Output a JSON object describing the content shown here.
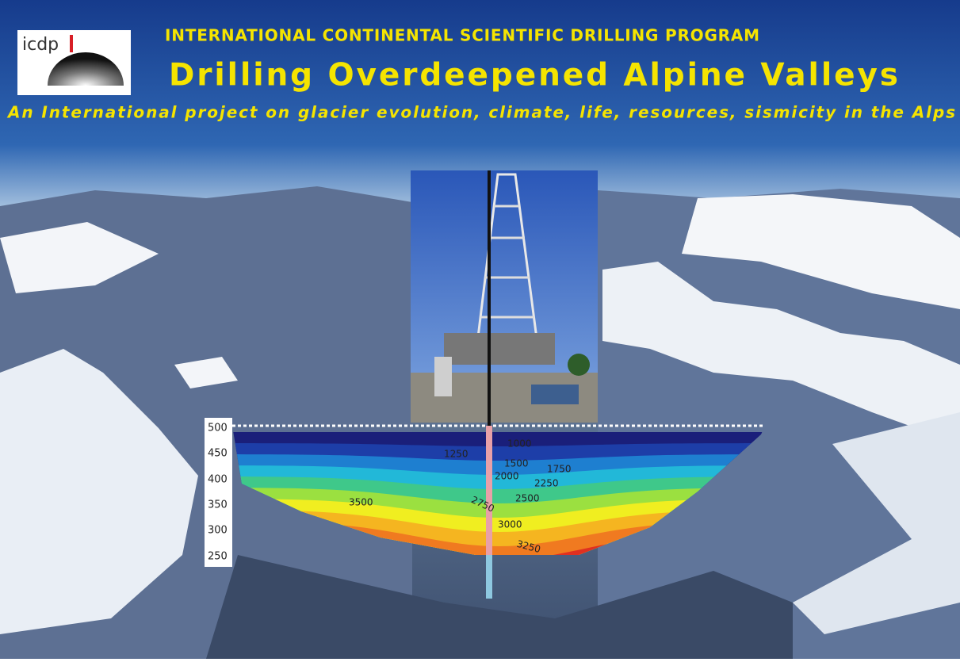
{
  "logo": {
    "text": "icdp"
  },
  "header": {
    "program": "INTERNATIONAL CONTINENTAL SCIENTIFIC DRILLING PROGRAM",
    "title": "Drilling Overdeepened Alpine Valleys",
    "subtitle": "An International project on glacier evolution, climate, life, resources, sismicity in the Alps"
  },
  "section": {
    "axis_labels": [
      "500",
      "450",
      "400",
      "350",
      "300",
      "250"
    ],
    "contour_labels": [
      "1000",
      "1250",
      "1500",
      "1750",
      "2000",
      "2250",
      "2500",
      "2750",
      "3000",
      "3250",
      "3500"
    ]
  }
}
